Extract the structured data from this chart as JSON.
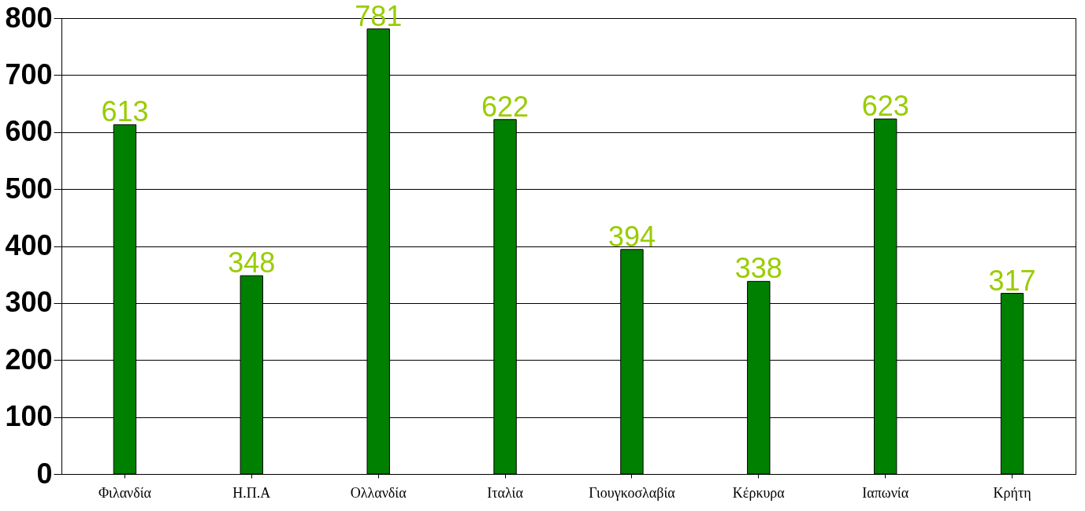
{
  "chart_data": {
    "type": "bar",
    "categories": [
      "Φιλανδία",
      "Η.Π.Α",
      "Ολλανδία",
      "Ιταλία",
      "Γιουγκοσλαβία",
      "Κέρκυρα",
      "Ιαπωνία",
      "Κρήτη"
    ],
    "values": [
      613,
      348,
      781,
      622,
      394,
      338,
      623,
      317
    ],
    "color": "#008000",
    "ylim": [
      0,
      800
    ],
    "yticks": [
      0,
      100,
      200,
      300,
      400,
      500,
      600,
      700,
      800
    ],
    "grid": "y",
    "data_labels": true
  }
}
